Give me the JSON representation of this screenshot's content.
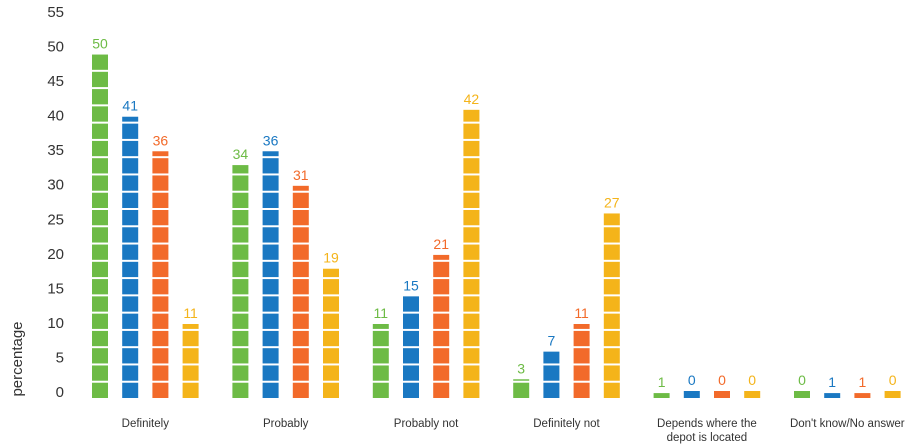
{
  "chart_data": {
    "type": "bar",
    "ylabel": "percentage",
    "ylim": [
      0,
      55
    ],
    "yticks": [
      0,
      5,
      10,
      15,
      20,
      25,
      30,
      35,
      40,
      45,
      50,
      55
    ],
    "grid": false,
    "categories": [
      [
        "Definitely"
      ],
      [
        "Probably"
      ],
      [
        "Probably not"
      ],
      [
        "Definitely not"
      ],
      [
        "Depends where the",
        "depot is located"
      ],
      [
        "Don't know/No answer"
      ]
    ],
    "series": [
      {
        "color": "#6dbb45",
        "values": [
          50,
          34,
          11,
          3,
          1,
          0
        ]
      },
      {
        "color": "#1a78c2",
        "values": [
          41,
          36,
          15,
          7,
          0,
          1
        ]
      },
      {
        "color": "#f26a2a",
        "values": [
          36,
          31,
          21,
          11,
          0,
          1
        ]
      },
      {
        "color": "#f4b41a",
        "values": [
          11,
          19,
          42,
          27,
          0,
          0
        ]
      }
    ]
  }
}
